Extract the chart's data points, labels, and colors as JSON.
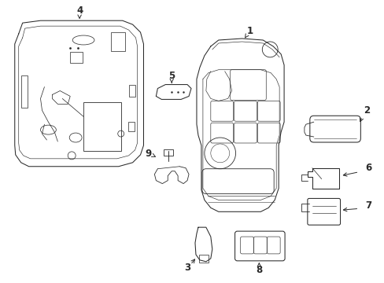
{
  "bg_color": "#ffffff",
  "line_color": "#2a2a2a",
  "label_color": "#1a1a1a",
  "lw": 0.75
}
